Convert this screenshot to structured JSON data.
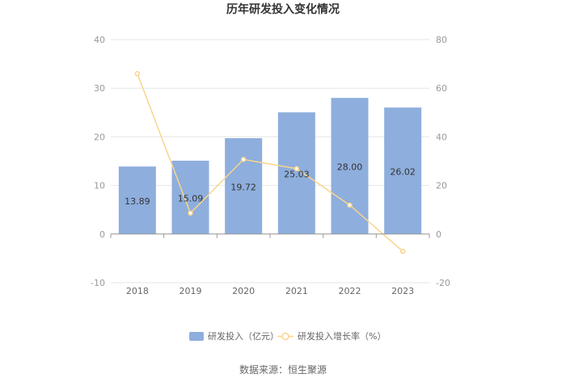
{
  "chart_data": {
    "type": "bar",
    "title": "历年研发投入变化情况",
    "categories": [
      "2018",
      "2019",
      "2020",
      "2021",
      "2022",
      "2023"
    ],
    "series": [
      {
        "name": "研发投入（亿元）",
        "type": "bar",
        "axis": "left",
        "values": [
          13.89,
          15.09,
          19.72,
          25.03,
          28.0,
          26.02
        ],
        "labels": [
          "13.89",
          "15.09",
          "19.72",
          "25.03",
          "28.00",
          "26.02"
        ],
        "color": "#8eaedd"
      },
      {
        "name": "研发投入增长率（%）",
        "type": "line",
        "axis": "right",
        "values": [
          66,
          8.6,
          30.7,
          26.9,
          11.9,
          -7.1
        ],
        "color": "#f9d48d"
      }
    ],
    "y_left": {
      "min": -10,
      "max": 40,
      "ticks": [
        "-10",
        "0",
        "10",
        "20",
        "30",
        "40"
      ]
    },
    "y_right": {
      "min": -20,
      "max": 80,
      "ticks": [
        "-20",
        "0",
        "20",
        "40",
        "60",
        "80"
      ]
    },
    "grid": true,
    "legend_position": "bottom"
  },
  "source_text": "数据来源：恒生聚源"
}
